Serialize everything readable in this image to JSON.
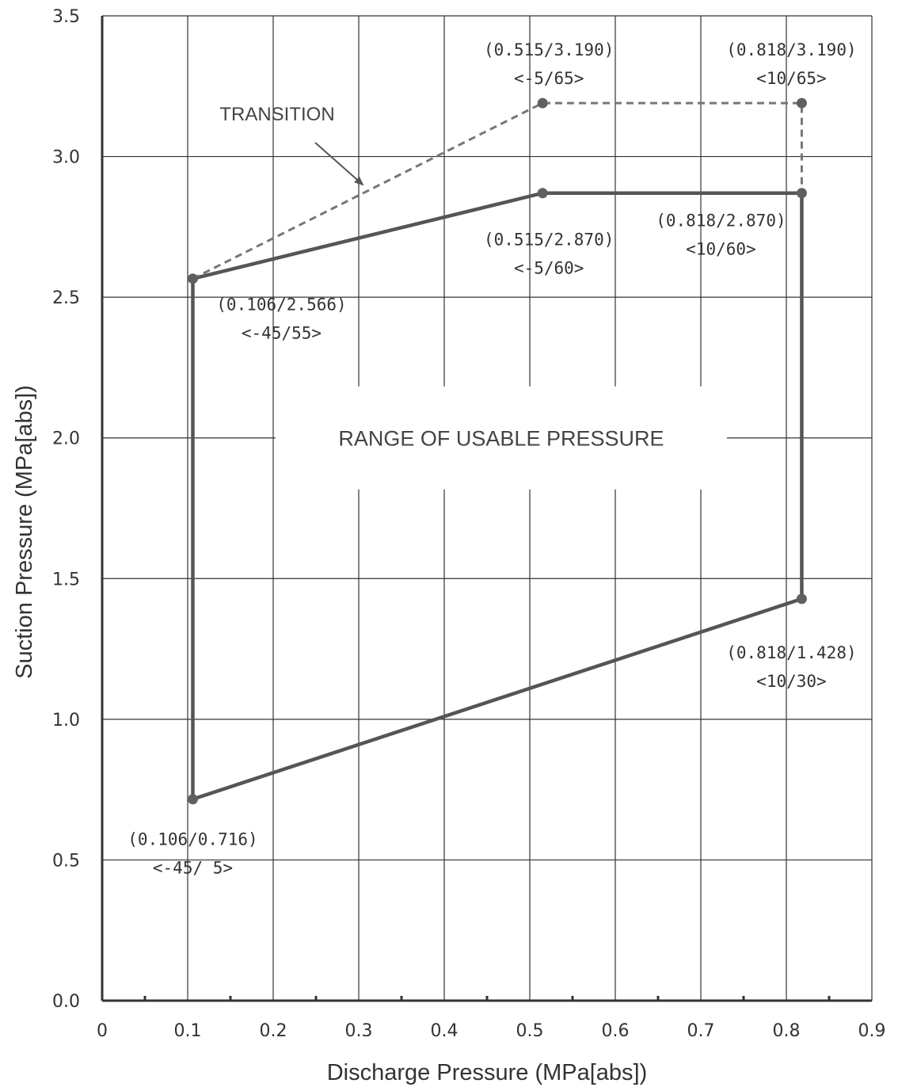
{
  "chart_data": {
    "type": "line",
    "title": "",
    "xlabel": "Discharge Pressure  (MPa[abs])",
    "ylabel": "Suction Pressure  (MPa[abs])",
    "xlim": [
      0,
      0.9
    ],
    "ylim": [
      0,
      3.5
    ],
    "x_ticks": [
      "0",
      "0.1",
      "0.2",
      "0.3",
      "0.4",
      "0.5",
      "0.6",
      "0.7",
      "0.8",
      "0.9"
    ],
    "y_ticks": [
      "0.0",
      "0.5",
      "1.0",
      "1.5",
      "2.0",
      "2.5",
      "3.0",
      "3.5"
    ],
    "grid": true,
    "series": [
      {
        "style": "solid",
        "points": [
          {
            "x": 0.106,
            "y": 0.716
          },
          {
            "x": 0.106,
            "y": 2.566
          },
          {
            "x": 0.515,
            "y": 2.87
          },
          {
            "x": 0.818,
            "y": 2.87
          },
          {
            "x": 0.818,
            "y": 1.428
          },
          {
            "x": 0.106,
            "y": 0.716
          }
        ]
      },
      {
        "style": "dashed",
        "points": [
          {
            "x": 0.106,
            "y": 2.566
          },
          {
            "x": 0.515,
            "y": 3.19
          },
          {
            "x": 0.818,
            "y": 3.19
          },
          {
            "x": 0.818,
            "y": 2.87
          }
        ]
      }
    ],
    "annotations": [
      {
        "point": [
          0.106,
          0.716
        ],
        "line1": "(0.106/0.716)",
        "line2": "<-45/ 5>"
      },
      {
        "point": [
          0.106,
          2.566
        ],
        "line1": "(0.106/2.566)",
        "line2": "<-45/55>"
      },
      {
        "point": [
          0.515,
          2.87
        ],
        "line1": "(0.515/2.870)",
        "line2": "<-5/60>"
      },
      {
        "point": [
          0.818,
          2.87
        ],
        "line1": "(0.818/2.870)",
        "line2": "<10/60>"
      },
      {
        "point": [
          0.818,
          1.428
        ],
        "line1": "(0.818/1.428)",
        "line2": "<10/30>"
      },
      {
        "point": [
          0.515,
          3.19
        ],
        "line1": "(0.515/3.190)",
        "line2": "<-5/65>"
      },
      {
        "point": [
          0.818,
          3.19
        ],
        "line1": "(0.818/3.190)",
        "line2": "<10/65>"
      }
    ],
    "region_label": "RANGE OF USABLE PRESSURE",
    "transition_label": "TRANSITION",
    "colors": {
      "solid_line": "#555555",
      "dashed_line": "#777777",
      "grid": "#333333",
      "marker": "#606060"
    }
  }
}
